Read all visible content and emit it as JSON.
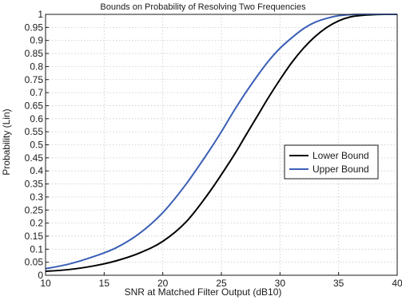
{
  "chart_data": {
    "type": "line",
    "title": "Bounds on Probability of Resolving Two Frequencies",
    "xlabel": "SNR at Matched Filter Output (dB10)",
    "ylabel": "Probability (Lin)",
    "xlim": [
      10,
      40
    ],
    "ylim": [
      0,
      1
    ],
    "x_ticks": [
      "10",
      "15",
      "20",
      "25",
      "30",
      "35",
      "40"
    ],
    "y_ticks": [
      "0",
      "0.05",
      "0.1",
      "0.15",
      "0.2",
      "0.25",
      "0.3",
      "0.35",
      "0.4",
      "0.45",
      "0.5",
      "0.55",
      "0.6",
      "0.65",
      "0.7",
      "0.75",
      "0.8",
      "0.85",
      "0.9",
      "0.95",
      "1"
    ],
    "grid": true,
    "legend_position": "right",
    "series": [
      {
        "name": "Lower Bound",
        "color": "#000000",
        "x": [
          10,
          12,
          14,
          16,
          18,
          20,
          22,
          24,
          26,
          27,
          28,
          29,
          30,
          31,
          32,
          33,
          34,
          35,
          36,
          37,
          38,
          39,
          40
        ],
        "y": [
          0.015,
          0.022,
          0.035,
          0.055,
          0.085,
          0.13,
          0.205,
          0.32,
          0.455,
          0.53,
          0.605,
          0.68,
          0.75,
          0.815,
          0.87,
          0.915,
          0.95,
          0.975,
          0.99,
          0.996,
          0.999,
          1.0,
          1.0
        ]
      },
      {
        "name": "Upper Bound",
        "color": "#3a5fb6",
        "x": [
          10,
          12,
          14,
          16,
          18,
          20,
          22,
          24,
          25,
          26,
          27,
          28,
          29,
          30,
          31,
          32,
          33,
          34,
          35,
          36,
          37,
          38,
          39,
          40
        ],
        "y": [
          0.025,
          0.043,
          0.07,
          0.105,
          0.16,
          0.24,
          0.35,
          0.48,
          0.55,
          0.625,
          0.695,
          0.76,
          0.82,
          0.87,
          0.91,
          0.945,
          0.97,
          0.985,
          0.995,
          0.999,
          1.0,
          1.0,
          1.0,
          1.0
        ]
      }
    ]
  }
}
